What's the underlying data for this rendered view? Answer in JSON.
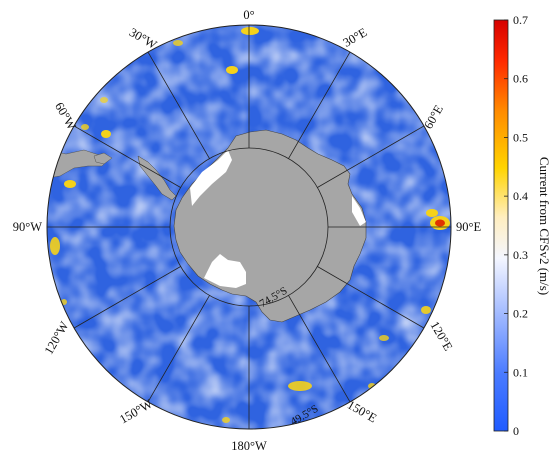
{
  "map": {
    "longitude_labels": {
      "lon_0": "0°",
      "lon_30e": "30°E",
      "lon_60e": "60°E",
      "lon_90e": "90°E",
      "lon_120e": "120°E",
      "lon_150e": "150°E",
      "lon_180w": "180°W",
      "lon_150w": "150°W",
      "lon_120w": "120°W",
      "lon_90w": "90°W",
      "lon_60w": "60°W",
      "lon_30w": "30°W"
    },
    "latitude_labels": {
      "lat_inner": "74.5°S",
      "lat_outer": "49.5°S"
    },
    "colors": {
      "ocean_low": "#2f63e0",
      "ocean_mid": "#e9efff",
      "ocean_high": "#f5d21a",
      "land": "#a6a6a6",
      "ice_shelf": "#ffffff",
      "grid": "#222222"
    }
  },
  "colorbar": {
    "title": "Current from CFSv2 (m/s)",
    "ticks": [
      "0",
      "0.1",
      "0.2",
      "0.3",
      "0.4",
      "0.5",
      "0.6",
      "0.7"
    ],
    "min": 0,
    "max": 0.7,
    "colormap": [
      "#1f5bff",
      "#4a7bff",
      "#9fb8ff",
      "#f4f6ff",
      "#ffeec0",
      "#ffd400",
      "#ff8a00",
      "#ff2a00",
      "#d60000"
    ]
  }
}
